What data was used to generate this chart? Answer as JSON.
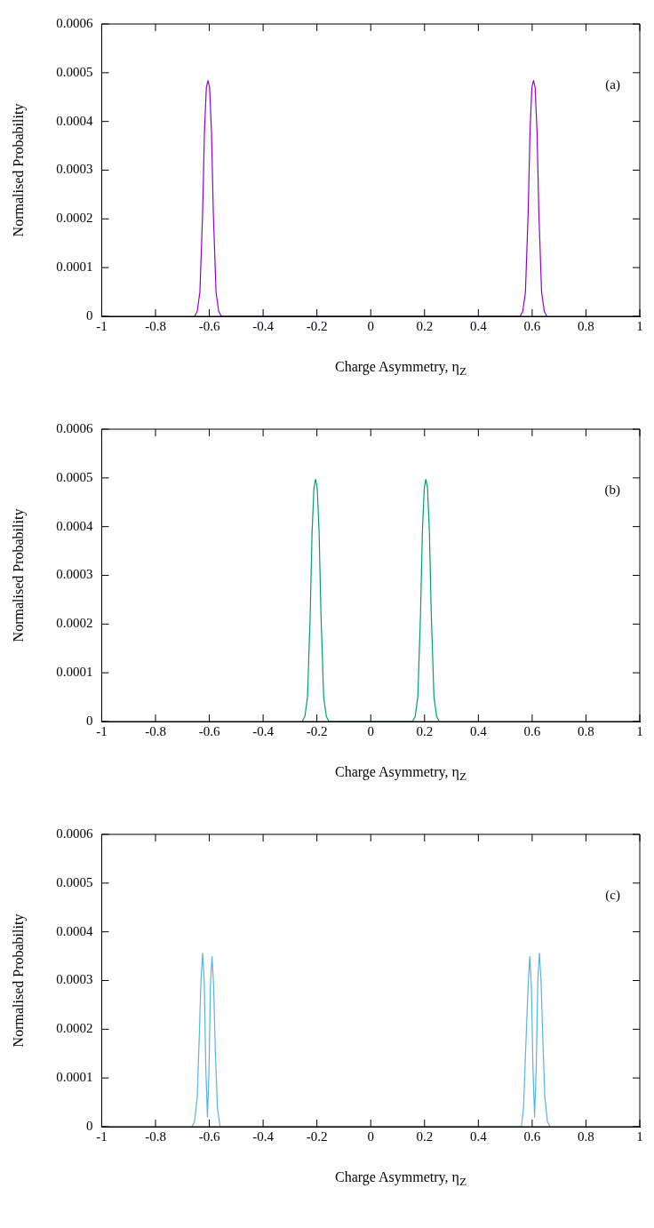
{
  "chart_data": [
    {
      "type": "line",
      "xlabel": "Charge Asymmetry, η$_{Z}$",
      "ylabel": "Normalised Probability",
      "annotations": [
        "(a)"
      ],
      "xlim": [
        -1,
        1
      ],
      "xticks": [
        -1,
        -0.8,
        -0.6,
        -0.4,
        -0.2,
        0,
        0.2,
        0.4,
        0.6,
        0.8,
        1
      ],
      "ylim": [
        0,
        0.0006
      ],
      "yticks": [
        0,
        0.0001,
        0.0002,
        0.0003,
        0.0004,
        0.0005,
        0.0006
      ],
      "grid": false,
      "legend": false,
      "series": [
        {
          "color": "#9400d3",
          "x": [
            -0.655,
            -0.645,
            -0.635,
            -0.625,
            -0.618,
            -0.611,
            -0.605,
            -0.599,
            -0.592,
            -0.585,
            -0.575,
            -0.565,
            -0.555,
            0.555,
            0.565,
            0.575,
            0.585,
            0.592,
            0.599,
            0.605,
            0.611,
            0.618,
            0.625,
            0.635,
            0.645,
            0.655
          ],
          "values": [
            0,
            1e-05,
            5e-05,
            0.00021,
            0.00038,
            0.00047,
            0.000484,
            0.00047,
            0.00038,
            0.00021,
            5e-05,
            1e-05,
            0,
            0,
            1e-05,
            5e-05,
            0.00021,
            0.00038,
            0.00047,
            0.000484,
            0.00047,
            0.00038,
            0.00021,
            5e-05,
            1e-05,
            0
          ]
        }
      ]
    },
    {
      "type": "line",
      "xlabel": "Charge Asymmetry, η$_{Z}$",
      "ylabel": "Normalised Probability",
      "annotations": [
        "(b)"
      ],
      "xlim": [
        -1,
        1
      ],
      "xticks": [
        -1,
        -0.8,
        -0.6,
        -0.4,
        -0.2,
        0,
        0.2,
        0.4,
        0.6,
        0.8,
        1
      ],
      "ylim": [
        0,
        0.0006
      ],
      "yticks": [
        0,
        0.0001,
        0.0002,
        0.0003,
        0.0004,
        0.0005,
        0.0006
      ],
      "grid": false,
      "legend": false,
      "series": [
        {
          "color": "#009e73",
          "x": [
            -0.255,
            -0.245,
            -0.235,
            -0.225,
            -0.218,
            -0.211,
            -0.205,
            -0.199,
            -0.192,
            -0.185,
            -0.175,
            -0.165,
            -0.155,
            0.155,
            0.165,
            0.175,
            0.185,
            0.192,
            0.199,
            0.205,
            0.211,
            0.218,
            0.225,
            0.235,
            0.245,
            0.255
          ],
          "values": [
            0,
            1e-05,
            5e-05,
            0.00022,
            0.00039,
            0.00048,
            0.000497,
            0.00048,
            0.00039,
            0.00022,
            5e-05,
            1e-05,
            0,
            0,
            1e-05,
            5e-05,
            0.00022,
            0.00039,
            0.00048,
            0.000497,
            0.00048,
            0.00039,
            0.00022,
            5e-05,
            1e-05,
            0
          ]
        }
      ]
    },
    {
      "type": "line",
      "xlabel": "Charge Asymmetry, η$_{Z}$",
      "ylabel": "Normalised Probability",
      "annotations": [
        "(c)"
      ],
      "xlim": [
        -1,
        1
      ],
      "xticks": [
        -1,
        -0.8,
        -0.6,
        -0.4,
        -0.2,
        0,
        0.2,
        0.4,
        0.6,
        0.8,
        1
      ],
      "ylim": [
        0,
        0.0006
      ],
      "yticks": [
        0,
        0.0001,
        0.0002,
        0.0003,
        0.0004,
        0.0005,
        0.0006
      ],
      "grid": false,
      "legend": false,
      "series": [
        {
          "color": "#56b4e9",
          "x": [
            -0.665,
            -0.655,
            -0.645,
            -0.637,
            -0.631,
            -0.625,
            -0.619,
            -0.613,
            -0.607,
            -0.601,
            -0.596,
            -0.59,
            -0.584,
            -0.578,
            -0.57,
            -0.56,
            -0.55,
            0.55,
            0.56,
            0.568,
            0.576,
            0.585,
            0.591,
            0.597,
            0.603,
            0.609,
            0.615,
            0.621,
            0.627,
            0.633,
            0.639,
            0.647,
            0.657,
            0.667
          ],
          "values": [
            0,
            1e-05,
            6e-05,
            0.00019,
            0.0003,
            0.000356,
            0.0003,
            0.00012,
            2e-05,
            0.00012,
            0.00029,
            0.000349,
            0.00029,
            0.00016,
            4e-05,
            0,
            0,
            0,
            0,
            4e-05,
            0.00016,
            0.00029,
            0.000349,
            0.00029,
            0.00012,
            2e-05,
            0.00012,
            0.0003,
            0.000356,
            0.0003,
            0.00019,
            6e-05,
            1e-05,
            0
          ]
        }
      ]
    }
  ]
}
